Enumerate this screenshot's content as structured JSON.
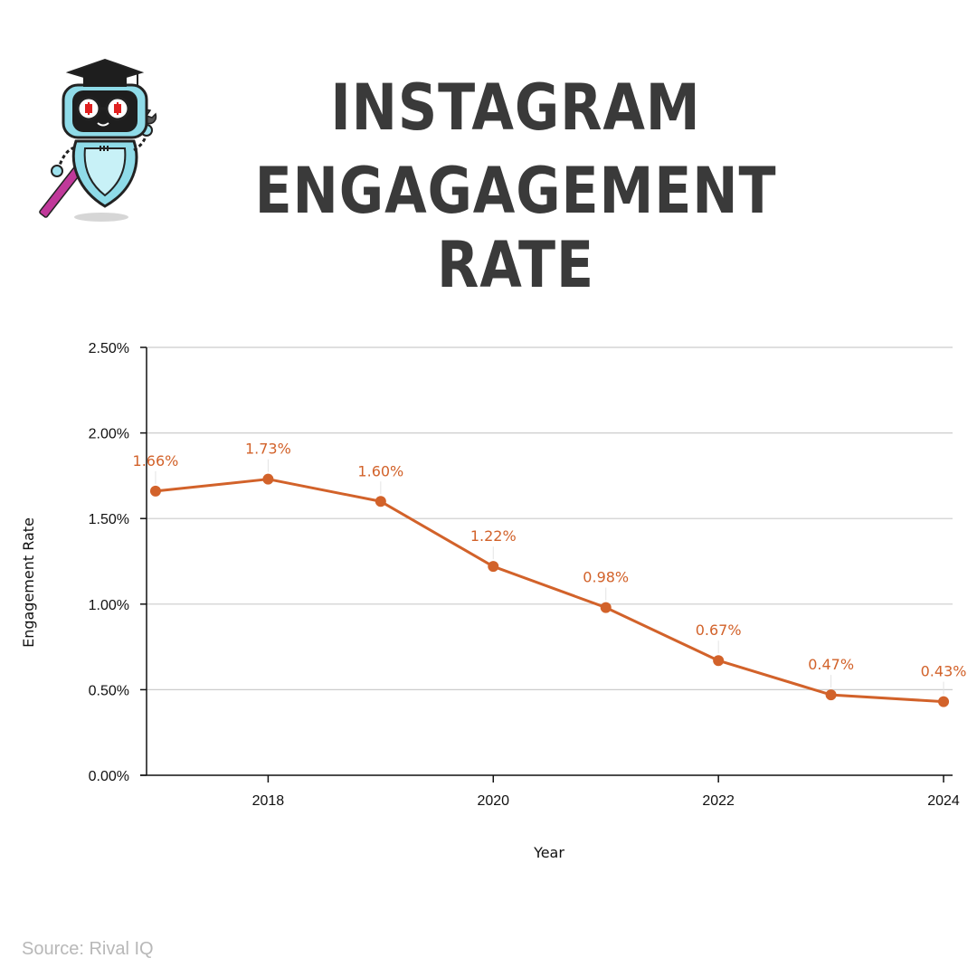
{
  "page": {
    "title_line1": "INSTAGRAM",
    "title_line2": "ENGAGAGEMENT RATE",
    "source": "Source: Rival IQ",
    "mascot_icon": "graduate-robot-icon"
  },
  "colors": {
    "series": "#d2622a",
    "grid": "#cccccc",
    "axis": "#111111",
    "title": "#3a3a3a",
    "source": "#b8b8b8"
  },
  "chart_data": {
    "type": "line",
    "title": "INSTAGRAM ENGAGAGEMENT RATE",
    "xlabel": "Year",
    "ylabel": "Engagement Rate",
    "x": [
      2017,
      2018,
      2019,
      2020,
      2021,
      2022,
      2023,
      2024
    ],
    "series": [
      {
        "name": "Engagement Rate",
        "values": [
          1.66,
          1.73,
          1.6,
          1.22,
          0.98,
          0.67,
          0.47,
          0.43
        ],
        "labels": [
          "1.66%",
          "1.73%",
          "1.60%",
          "1.22%",
          "0.98%",
          "0.67%",
          "0.47%",
          "0.43%"
        ]
      }
    ],
    "xlim": [
      2016.92,
      2024.08
    ],
    "ylim": [
      0,
      2.5
    ],
    "xticks": [
      2018,
      2020,
      2022,
      2024
    ],
    "xtick_labels": [
      "2018",
      "2020",
      "2022",
      "2024"
    ],
    "yticks": [
      0,
      0.5,
      1.0,
      1.5,
      2.0,
      2.5
    ],
    "ytick_labels": [
      "0.00%",
      "0.50%",
      "1.00%",
      "1.50%",
      "2.00%",
      "2.50%"
    ],
    "grid": true,
    "legend": "none"
  }
}
